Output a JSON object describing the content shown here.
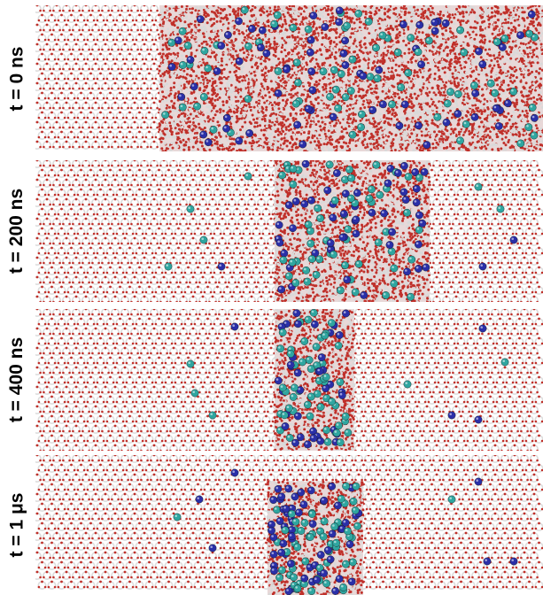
{
  "figure": {
    "panels": [
      {
        "label": "t = 0 ns",
        "liquid_region": "x 140–573 (full right side)",
        "ions": "dispersed"
      },
      {
        "label": "t = 200 ns",
        "liquid_region": "middle band",
        "ions": "partially expelled"
      },
      {
        "label": "t = 400 ns",
        "liquid_region": "narrow middle band",
        "ions": "concentrated in band"
      },
      {
        "label": "t = 1 μs",
        "liquid_region": "small cluster",
        "ions": "clustered brine pocket"
      }
    ],
    "colors": {
      "oxygen": "#c0302a",
      "hydrogen": "#d9d9d9",
      "ion_blue": "#2a2fa8",
      "ion_teal": "#2fa6a0",
      "background": "#ffffff"
    }
  }
}
